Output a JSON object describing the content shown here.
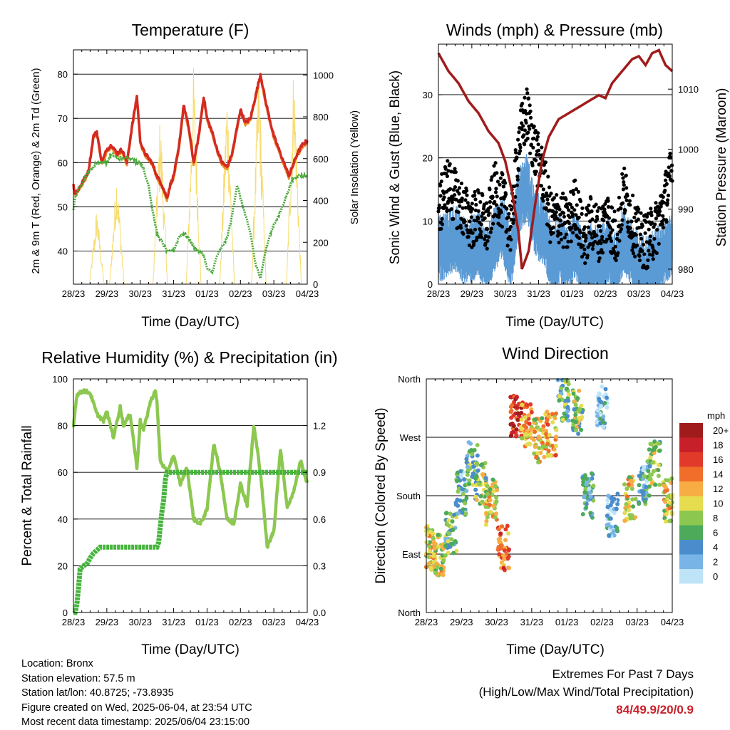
{
  "colors": {
    "temp_red": "#d42a22",
    "temp_orange": "#f08c28",
    "dewpoint_green": "#4caa3c",
    "solar_yellow": "#f7dc6f",
    "wind_blue": "#5a9ad5",
    "gust_black": "#000000",
    "pressure_maroon": "#a01c1c",
    "rh_lightgreen": "#8cc850",
    "precip_green": "#46b43c",
    "grid": "#000000"
  },
  "x_ticks": [
    "28/23",
    "29/23",
    "30/23",
    "31/23",
    "01/23",
    "02/23",
    "03/23",
    "04/23"
  ],
  "xlabel": "Time (Day/UTC)",
  "chart_data": [
    {
      "id": "temperature",
      "type": "line",
      "title": "Temperature (F)",
      "xlabel": "Time (Day/UTC)",
      "ylabel": "2m & 9m T (Red, Orange) & 2m Td (Green)",
      "y2label": "Solar Insolation (Yellow)",
      "ylim": [
        32.5,
        85.5
      ],
      "yticks": [
        40,
        50,
        60,
        70,
        80
      ],
      "y2lim": [
        0,
        1120
      ],
      "y2ticks": [
        0,
        200,
        400,
        600,
        800,
        1000
      ],
      "grid": true,
      "x_days": [
        0,
        0.05,
        0.15,
        0.3,
        0.45,
        0.6,
        0.7,
        0.85,
        1.0,
        1.15,
        1.3,
        1.45,
        1.6,
        1.75,
        1.9,
        2.0,
        2.08,
        2.15,
        2.25,
        2.35,
        2.5,
        2.65,
        2.8,
        2.9,
        3.0,
        3.15,
        3.3,
        3.45,
        3.6,
        3.75,
        3.9,
        4.0,
        4.15,
        4.3,
        4.45,
        4.6,
        4.75,
        4.9,
        5.0,
        5.15,
        5.3,
        5.45,
        5.6,
        5.75,
        5.9,
        6.0,
        6.15,
        6.3,
        6.45,
        6.55,
        6.7,
        6.85,
        7.0
      ],
      "series": [
        {
          "key": "temp2m",
          "values": [
            55,
            53,
            54,
            56,
            58,
            66,
            67,
            60,
            63,
            64,
            62,
            63,
            60,
            68,
            75,
            65,
            63,
            62,
            61,
            60,
            57,
            55,
            52,
            55,
            57,
            63,
            73,
            68,
            60,
            66,
            75,
            70,
            67,
            63,
            60,
            59,
            62,
            68,
            72,
            69,
            70,
            75,
            80,
            74,
            69,
            66,
            63,
            60,
            57,
            59,
            62,
            64,
            65
          ]
        },
        {
          "key": "td2m",
          "values": [
            49.5,
            52,
            54,
            56,
            58,
            59,
            60,
            60,
            60,
            62,
            61,
            61,
            61,
            61,
            60,
            60,
            59,
            57,
            55,
            50,
            44,
            42,
            40,
            40,
            40,
            43,
            44,
            43,
            41,
            40,
            39,
            36,
            35,
            39,
            41,
            43,
            48,
            55,
            52,
            48,
            44,
            37,
            34,
            40,
            44,
            46,
            48,
            51,
            54,
            56,
            57,
            57,
            57
          ]
        }
      ],
      "solar_peaks": [
        {
          "day": 0.7,
          "value": 380
        },
        {
          "day": 1.3,
          "value": 560
        },
        {
          "day": 2.6,
          "value": 850
        },
        {
          "day": 3.6,
          "value": 1080
        },
        {
          "day": 4.6,
          "value": 980
        },
        {
          "day": 5.55,
          "value": 1090
        },
        {
          "day": 6.6,
          "value": 1100
        }
      ]
    },
    {
      "id": "winds",
      "type": "scatter",
      "title": "Winds (mph) & Pressure (mb)",
      "xlabel": "Time (Day/UTC)",
      "ylabel": "Sonic Wind & Gust (Blue, Black)",
      "y2label": "Station Pressure (Maroon)",
      "ylim": [
        0,
        38
      ],
      "yticks": [
        0,
        10,
        20,
        30
      ],
      "y2lim": [
        977.5,
        1017.5
      ],
      "y2ticks": [
        980,
        990,
        1000,
        1010
      ],
      "grid": true,
      "pressure": {
        "x_days": [
          0,
          0.3,
          0.6,
          0.9,
          1.2,
          1.5,
          1.8,
          2.0,
          2.2,
          2.4,
          2.5,
          2.7,
          2.9,
          3.1,
          3.3,
          3.6,
          3.9,
          4.2,
          4.5,
          4.8,
          5.0,
          5.2,
          5.5,
          5.8,
          6.0,
          6.2,
          6.4,
          6.6,
          6.8,
          7.0
        ],
        "values": [
          1016,
          1013,
          1011,
          1008,
          1006,
          1003,
          1001,
          998,
          993,
          986,
          980,
          983,
          991,
          998,
          1002,
          1005,
          1006,
          1007,
          1008,
          1009,
          1008.5,
          1011,
          1013,
          1015,
          1015.5,
          1014,
          1016,
          1016.5,
          1014,
          1013
        ]
      },
      "wind_mean_by_half_day": [
        6,
        7,
        8,
        6,
        6,
        7,
        4,
        8,
        9,
        5,
        14,
        16,
        10,
        9,
        5,
        6,
        4,
        7,
        3,
        5,
        4,
        6,
        3,
        8,
        5,
        3,
        3,
        4,
        6,
        7
      ],
      "gust_mean_by_half_day": [
        10,
        15,
        13,
        11,
        9,
        10,
        8,
        14,
        12,
        8,
        22,
        26,
        20,
        16,
        9,
        10,
        8,
        12,
        6,
        9,
        7,
        10,
        6,
        14,
        9,
        6,
        6,
        8,
        12,
        17
      ]
    },
    {
      "id": "rh_precip",
      "type": "line",
      "title": "Relative Humidity (%) & Precipitation (in)",
      "xlabel": "Time (Day/UTC)",
      "ylabel": "Percent & Total Rainfall",
      "ylim": [
        0,
        100
      ],
      "yticks": [
        0,
        20,
        40,
        60,
        80,
        100
      ],
      "y2lim": [
        0,
        1.5
      ],
      "y2ticks": [
        "0.0",
        "0.3",
        "0.6",
        "0.9",
        "1.2"
      ],
      "grid": true,
      "rh": {
        "x_days": [
          0,
          0.1,
          0.3,
          0.5,
          0.7,
          0.9,
          1.0,
          1.2,
          1.4,
          1.5,
          1.7,
          1.9,
          2.0,
          2.1,
          2.3,
          2.45,
          2.5,
          2.6,
          2.8,
          3.0,
          3.2,
          3.4,
          3.6,
          3.8,
          4.0,
          4.2,
          4.4,
          4.6,
          4.8,
          5.0,
          5.2,
          5.4,
          5.6,
          5.8,
          6.0,
          6.2,
          6.4,
          6.6,
          6.8,
          7.0
        ],
        "values": [
          80,
          93,
          95,
          94,
          85,
          82,
          86,
          75,
          88,
          80,
          85,
          62,
          82,
          78,
          90,
          95,
          90,
          65,
          60,
          67,
          55,
          62,
          40,
          38,
          44,
          72,
          60,
          40,
          38,
          55,
          46,
          80,
          60,
          28,
          35,
          70,
          45,
          52,
          65,
          55
        ]
      },
      "precip": {
        "x_days": [
          0,
          0.05,
          0.1,
          0.15,
          0.2,
          0.3,
          0.4,
          0.5,
          0.6,
          0.7,
          0.8,
          1.0,
          2.0,
          2.5,
          2.55,
          2.6,
          2.65,
          2.7,
          2.75,
          2.8,
          3.0,
          4.0,
          5.0,
          6.0,
          7.0
        ],
        "values": [
          0,
          0,
          0.05,
          0.15,
          0.28,
          0.3,
          0.31,
          0.35,
          0.38,
          0.4,
          0.42,
          0.42,
          0.42,
          0.42,
          0.45,
          0.55,
          0.65,
          0.72,
          0.85,
          0.9,
          0.9,
          0.9,
          0.9,
          0.9,
          0.9
        ]
      }
    },
    {
      "id": "wind_direction",
      "type": "scatter",
      "title": "Wind Direction",
      "xlabel": "Time (Day/UTC)",
      "ylabel": "Direction (Colored By Speed)",
      "ylim": [
        0,
        360
      ],
      "ytick_labels": [
        "North",
        "East",
        "South",
        "West",
        "North"
      ],
      "grid": true,
      "legend": {
        "title": "mph",
        "position": "right",
        "labels": [
          "20+",
          "18",
          "16",
          "14",
          "12",
          "10",
          "8",
          "6",
          "4",
          "2",
          "0"
        ],
        "colors": [
          "#a01c1c",
          "#c8202a",
          "#e13a2a",
          "#f06e2a",
          "#f8ac44",
          "#e6dc50",
          "#8cc850",
          "#4caa5a",
          "#4a8ccc",
          "#78b4e6",
          "#bfe3f7"
        ]
      },
      "clusters": [
        {
          "day": 0.1,
          "dir": 100,
          "spd": 10
        },
        {
          "day": 0.35,
          "dir": 90,
          "spd": 10
        },
        {
          "day": 0.7,
          "dir": 120,
          "spd": 6
        },
        {
          "day": 1.0,
          "dir": 185,
          "spd": 4
        },
        {
          "day": 1.3,
          "dir": 230,
          "spd": 6
        },
        {
          "day": 1.55,
          "dir": 200,
          "spd": 8
        },
        {
          "day": 1.85,
          "dir": 170,
          "spd": 10
        },
        {
          "day": 2.2,
          "dir": 100,
          "spd": 14
        },
        {
          "day": 2.55,
          "dir": 300,
          "spd": 18
        },
        {
          "day": 2.85,
          "dir": 290,
          "spd": 12
        },
        {
          "day": 3.2,
          "dir": 265,
          "spd": 10
        },
        {
          "day": 3.55,
          "dir": 275,
          "spd": 12
        },
        {
          "day": 3.9,
          "dir": 330,
          "spd": 6
        },
        {
          "day": 4.3,
          "dir": 310,
          "spd": 8
        },
        {
          "day": 4.6,
          "dir": 180,
          "spd": 4
        },
        {
          "day": 5.0,
          "dir": 320,
          "spd": 2
        },
        {
          "day": 5.3,
          "dir": 150,
          "spd": 2
        },
        {
          "day": 5.8,
          "dir": 175,
          "spd": 10
        },
        {
          "day": 6.2,
          "dir": 200,
          "spd": 4
        },
        {
          "day": 6.5,
          "dir": 230,
          "spd": 8
        },
        {
          "day": 6.9,
          "dir": 175,
          "spd": 10
        }
      ]
    }
  ],
  "footer": {
    "location": "Location: Bronx",
    "elevation": "Station elevation: 57.5 m",
    "latlon": "Station lat/lon: 40.8725; -73.8935",
    "created": "Figure created on Wed, 2025-06-04, at 23:54 UTC",
    "recent": "Most recent data timestamp: 2025/06/04 23:15:00"
  },
  "extremes": {
    "line1": "Extremes For Past 7 Days",
    "line2": "(High/Low/Max Wind/Total Precipitation)",
    "values": "84/49.9/20/0.9"
  }
}
